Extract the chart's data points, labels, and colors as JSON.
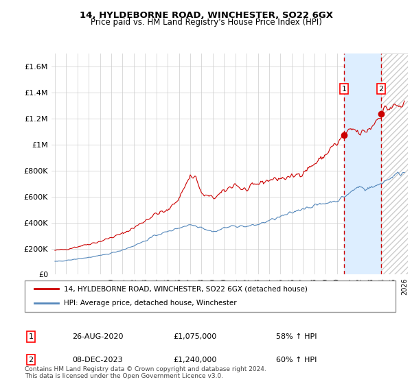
{
  "title": "14, HYLDEBORNE ROAD, WINCHESTER, SO22 6GX",
  "subtitle": "Price paid vs. HM Land Registry's House Price Index (HPI)",
  "legend_line1": "14, HYLDEBORNE ROAD, WINCHESTER, SO22 6GX (detached house)",
  "legend_line2": "HPI: Average price, detached house, Winchester",
  "annotation1_date": "26-AUG-2020",
  "annotation1_price": "£1,075,000",
  "annotation1_hpi": "58% ↑ HPI",
  "annotation2_date": "08-DEC-2023",
  "annotation2_price": "£1,240,000",
  "annotation2_hpi": "60% ↑ HPI",
  "footer": "Contains HM Land Registry data © Crown copyright and database right 2024.\nThis data is licensed under the Open Government Licence v3.0.",
  "red_color": "#cc0000",
  "blue_color": "#5588bb",
  "vline_color": "#cc0000",
  "shade_color": "#ddeeff",
  "hatch_color": "#cccccc",
  "ylim": [
    0,
    1700000
  ],
  "yticks": [
    0,
    200000,
    400000,
    600000,
    800000,
    1000000,
    1200000,
    1400000,
    1600000
  ],
  "ytick_labels": [
    "£0",
    "£200K",
    "£400K",
    "£600K",
    "£800K",
    "£1M",
    "£1.2M",
    "£1.4M",
    "£1.6M"
  ],
  "sale1_year": 2020.65,
  "sale1_price": 1075000,
  "sale2_year": 2023.92,
  "sale2_price": 1240000,
  "xlim_left": 1994.7,
  "xlim_right": 2026.3
}
